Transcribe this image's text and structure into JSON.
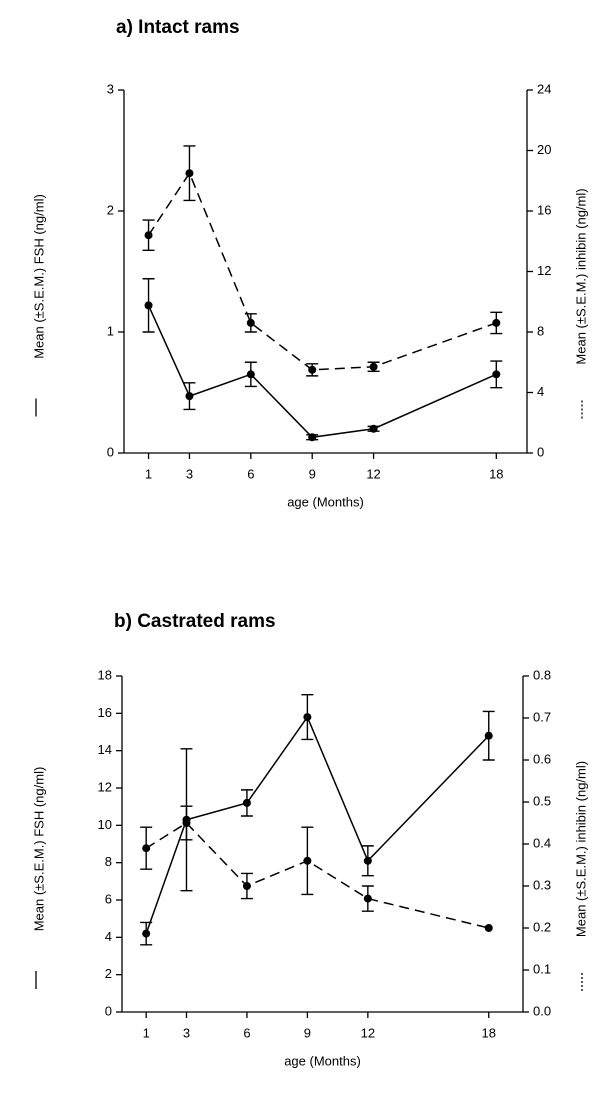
{
  "chart_data": [
    {
      "type": "line",
      "title": "a) Intact rams",
      "x_label": "age (Months)",
      "y_label": "Mean (±S.E.M.) FSH (ng/ml)",
      "y2_label": "Mean (±S.E.M.) inhibin (ng/ml)",
      "x": [
        1,
        3,
        6,
        9,
        12,
        18
      ],
      "xlim": [
        -0.2,
        19.5
      ],
      "xticks": [
        1,
        3,
        6,
        9,
        12,
        18
      ],
      "ylim": [
        0,
        3
      ],
      "yticks": [
        0,
        1,
        2,
        3
      ],
      "y2lim": [
        0,
        24
      ],
      "y2ticks": [
        0,
        4,
        8,
        12,
        16,
        20,
        24
      ],
      "series": [
        {
          "color": "#000000",
          "style": "solid",
          "values": [
            1.22,
            0.47,
            0.65,
            0.13,
            0.2,
            0.65
          ],
          "errors": [
            0.22,
            0.11,
            0.1,
            0.02,
            0.02,
            0.11
          ]
        },
        {
          "color": "#000000",
          "style": "dashed",
          "axis": "y2",
          "values": [
            14.4,
            18.5,
            8.6,
            5.5,
            5.7,
            8.6
          ],
          "errors": [
            1.0,
            1.8,
            0.6,
            0.4,
            0.3,
            0.7
          ]
        }
      ]
    },
    {
      "type": "line",
      "title": "b) Castrated rams",
      "x_label": "age (Months)",
      "y_label": "Mean (±S.E.M.) FSH (ng/ml)",
      "y2_label": "Mean (±S.E.M.) inhibin (ng/ml)",
      "x": [
        1,
        3,
        6,
        9,
        12,
        18
      ],
      "xlim": [
        -0.2,
        19.7
      ],
      "xticks": [
        1,
        3,
        6,
        9,
        12,
        18
      ],
      "ylim": [
        0,
        18
      ],
      "yticks": [
        0,
        2,
        4,
        6,
        8,
        10,
        12,
        14,
        16,
        18
      ],
      "y2lim": [
        0,
        0.8
      ],
      "y2ticks": [
        {
          "value": 0,
          "label": "0.0"
        },
        0.1,
        0.2,
        0.3,
        0.4,
        0.5,
        0.6,
        0.7,
        0.8
      ],
      "series": [
        {
          "color": "#000000",
          "style": "solid",
          "values": [
            4.2,
            10.3,
            11.2,
            15.8,
            8.1,
            14.8
          ],
          "errors": [
            0.6,
            3.8,
            0.7,
            1.2,
            0.8,
            1.3
          ]
        },
        {
          "color": "#000000",
          "style": "dashed",
          "axis": "y2",
          "values": [
            0.39,
            0.45,
            0.3,
            0.36,
            0.27,
            0.2
          ],
          "errors": [
            0.05,
            0.04,
            0.03,
            0.08,
            0.03,
            null
          ]
        }
      ]
    }
  ]
}
